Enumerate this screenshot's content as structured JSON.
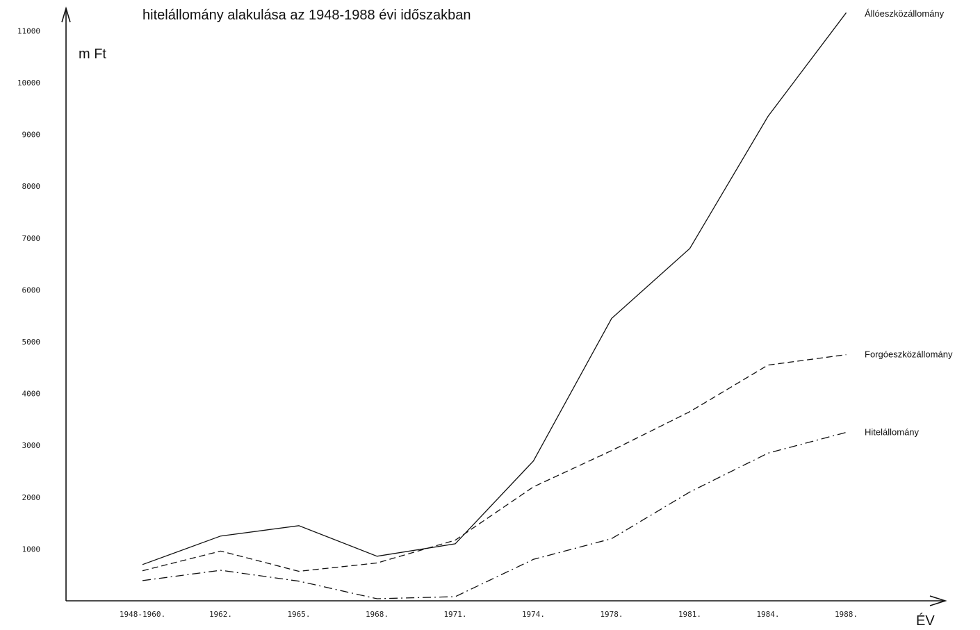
{
  "chart_data": {
    "type": "line",
    "title": "hitelállomány alakulása az 1948-1988 évi időszakban",
    "ylabel": "m Ft",
    "xlabel": "ÉV",
    "categories": [
      "1948-1960.",
      "1962.",
      "1965.",
      "1968.",
      "1971.",
      "1974.",
      "1978.",
      "1981.",
      "1984.",
      "1988."
    ],
    "yticks": [
      "1000",
      "2000",
      "3000",
      "4000",
      "5000",
      "6000",
      "7000",
      "8000",
      "9000",
      "10000",
      "11000"
    ],
    "ylim": [
      0,
      11300
    ],
    "grid": false,
    "legend": "line-end labels",
    "series": [
      {
        "name": "Állóeszközállomány",
        "dash": "solid",
        "values": [
          700,
          1250,
          1450,
          860,
          1100,
          2700,
          5450,
          6800,
          9350,
          11350
        ]
      },
      {
        "name": "Forgóeszközállomány",
        "dash": "dashed",
        "values": [
          580,
          960,
          570,
          730,
          1170,
          2200,
          2900,
          3650,
          4550,
          4750
        ]
      },
      {
        "name": "Hitelállomány",
        "dash": "dashdot",
        "values": [
          390,
          590,
          380,
          40,
          80,
          800,
          1200,
          2100,
          2850,
          3250
        ]
      }
    ]
  }
}
